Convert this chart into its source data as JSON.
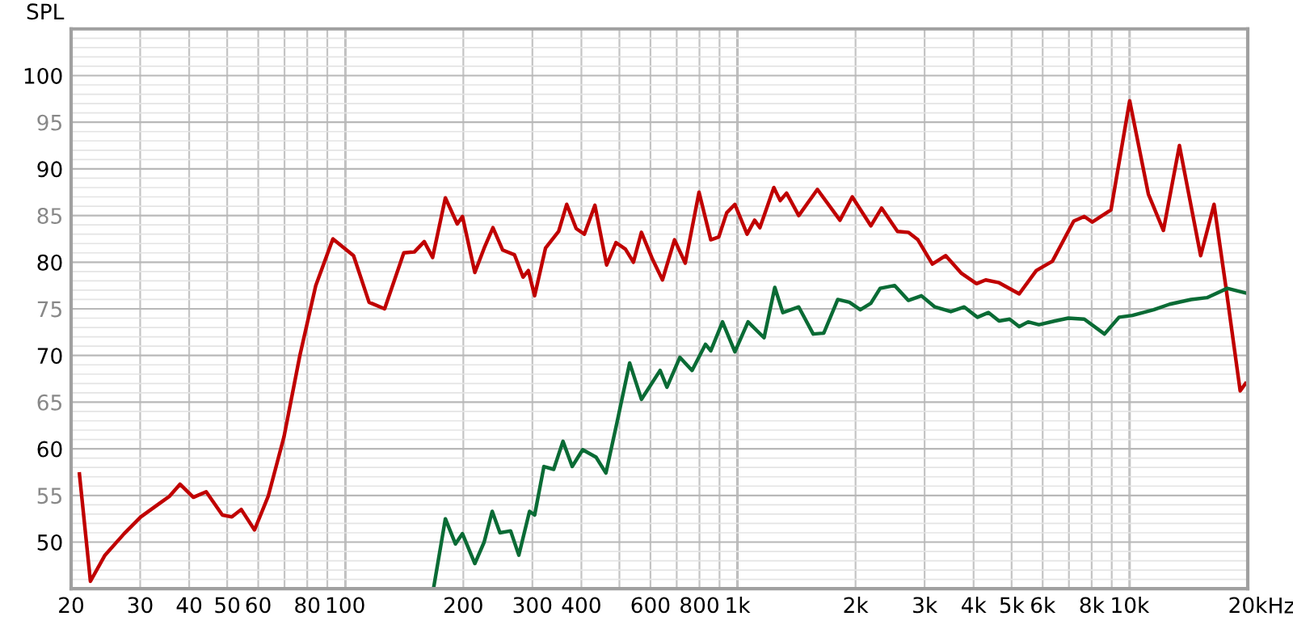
{
  "chart_data": {
    "type": "line",
    "ylabel": "SPL",
    "log": "x",
    "grid": true,
    "marker": "none",
    "line_style": "solid",
    "xlim": [
      20,
      20000
    ],
    "ylim": [
      45,
      105
    ],
    "xticks": [
      20,
      30,
      40,
      50,
      60,
      {
        "value": 70,
        "label": null
      },
      80,
      {
        "value": 90,
        "label": null
      },
      100,
      200,
      300,
      400,
      {
        "value": 500,
        "label": null
      },
      600,
      {
        "value": 700,
        "label": null
      },
      800,
      {
        "value": 900,
        "label": null
      },
      {
        "value": 1000,
        "label": "1k"
      },
      {
        "value": 2000,
        "label": "2k"
      },
      {
        "value": 3000,
        "label": "3k"
      },
      {
        "value": 4000,
        "label": "4k"
      },
      {
        "value": 5000,
        "label": "5k"
      },
      {
        "value": 6000,
        "label": "6k"
      },
      {
        "value": 7000,
        "label": null
      },
      {
        "value": 8000,
        "label": "8k"
      },
      {
        "value": 9000,
        "label": null
      },
      {
        "value": 10000,
        "label": "10k"
      },
      {
        "value": 20000,
        "label": "20k"
      }
    ],
    "xlabel": "Hz",
    "yticks": [
      50,
      55,
      60,
      65,
      70,
      75,
      80,
      85,
      90,
      95,
      100
    ],
    "series": [
      {
        "color": "#c00000",
        "x": [
          21.0,
          22.4,
          24.4,
          27.3,
          30.1,
          34.0,
          35.6,
          37.9,
          41.0,
          44.2,
          48.6,
          51.4,
          54.3,
          58.7,
          63.6,
          69.8,
          76.6,
          84.1,
          93.0,
          105,
          115,
          126,
          141,
          150,
          159,
          167,
          180,
          193,
          199,
          214,
          226,
          238,
          252,
          270,
          284,
          293,
          304,
          324,
          350,
          367,
          388,
          407,
          433,
          464,
          490,
          518,
          543,
          569,
          606,
          644,
          691,
          736,
          798,
          855,
          896,
          939,
          985,
          1058,
          1106,
          1141,
          1238,
          1285,
          1334,
          1433,
          1599,
          1825,
          1962,
          2188,
          2330,
          2559,
          2726,
          2884,
          3140,
          3396,
          3727,
          4070,
          4294,
          4645,
          5228,
          5780,
          6353,
          7200,
          7660,
          8030,
          8960,
          10000,
          11160,
          12190,
          13390,
          15170,
          16410,
          17570,
          19130,
          19740
        ],
        "values": [
          57.3,
          45.8,
          48.6,
          50.9,
          52.7,
          54.3,
          54.9,
          56.2,
          54.8,
          55.4,
          52.9,
          52.7,
          53.5,
          51.3,
          54.9,
          61.3,
          70.0,
          77.5,
          82.5,
          80.7,
          75.7,
          75.0,
          81.0,
          81.1,
          82.2,
          80.5,
          86.9,
          84.1,
          84.9,
          78.9,
          81.5,
          83.7,
          81.3,
          80.8,
          78.4,
          79.1,
          76.4,
          81.5,
          83.3,
          86.2,
          83.6,
          83.0,
          86.1,
          79.7,
          82.1,
          81.4,
          80.0,
          83.2,
          80.4,
          78.1,
          82.4,
          79.9,
          87.5,
          82.4,
          82.7,
          85.3,
          86.2,
          83.0,
          84.5,
          83.7,
          88.0,
          86.6,
          87.4,
          85.0,
          87.8,
          84.5,
          87.0,
          83.9,
          85.8,
          83.3,
          83.2,
          82.4,
          79.8,
          80.7,
          78.8,
          77.7,
          78.1,
          77.8,
          76.6,
          79.1,
          80.1,
          84.4,
          84.9,
          84.3,
          85.6,
          97.3,
          87.3,
          83.4,
          92.5,
          80.7,
          86.2,
          77.5,
          66.2,
          67.0
        ]
      },
      {
        "color": "#0a6b35",
        "x": [
          168,
          180,
          191,
          199,
          214,
          226,
          237,
          248,
          264,
          277,
          295,
          304,
          321,
          340,
          359,
          379,
          403,
          436,
          462,
          494,
          531,
          569,
          635,
          661,
          713,
          766,
          829,
          855,
          916,
          985,
          1064,
          1169,
          1245,
          1305,
          1433,
          1560,
          1660,
          1802,
          1930,
          2057,
          2188,
          2311,
          2517,
          2726,
          2945,
          3187,
          3500,
          3786,
          4093,
          4362,
          4645,
          4943,
          5228,
          5510,
          5869,
          6446,
          6976,
          7660,
          8627,
          9395,
          10160,
          11510,
          12650,
          14330,
          15740,
          17740,
          19740
        ],
        "values": [
          45.1,
          52.5,
          49.8,
          50.9,
          47.7,
          50.0,
          53.3,
          51.0,
          51.2,
          48.6,
          53.3,
          52.9,
          58.1,
          57.8,
          60.8,
          58.1,
          59.9,
          59.1,
          57.4,
          63.0,
          69.2,
          65.3,
          68.4,
          66.6,
          69.8,
          68.4,
          71.2,
          70.5,
          73.6,
          70.4,
          73.6,
          71.9,
          77.3,
          74.6,
          75.2,
          72.3,
          72.4,
          76.0,
          75.7,
          74.9,
          75.6,
          77.2,
          77.5,
          75.9,
          76.4,
          75.2,
          74.7,
          75.2,
          74.1,
          74.6,
          73.7,
          73.9,
          73.1,
          73.6,
          73.3,
          73.7,
          74.0,
          73.9,
          72.3,
          74.1,
          74.3,
          74.9,
          75.5,
          76.0,
          76.2,
          77.2,
          76.7
        ]
      }
    ]
  }
}
